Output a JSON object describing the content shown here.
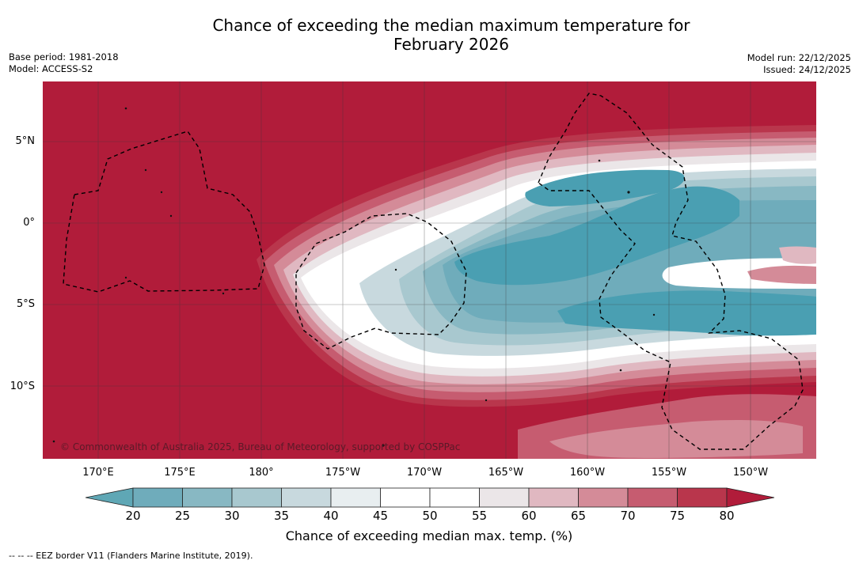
{
  "title": {
    "line1": "Chance of exceeding the median maximum temperature for",
    "line2": "February 2026"
  },
  "meta_left": {
    "base_period": "Base period: 1981-2018",
    "model": "Model: ACCESS-S2"
  },
  "meta_right": {
    "model_run": "Model run: 22/12/2025",
    "issued": "Issued: 24/12/2025"
  },
  "map": {
    "lat_labels": [
      "5°N",
      "0°",
      "5°S",
      "10°S"
    ],
    "lon_labels": [
      "170°E",
      "175°E",
      "180°",
      "175°W",
      "170°W",
      "165°W",
      "160°W",
      "155°W",
      "150°W"
    ],
    "copyright": "© Commonwealth of Australia 2025, Bureau of Meteorology, supported by COSPPac"
  },
  "colorbar": {
    "ticks": [
      "20",
      "25",
      "30",
      "35",
      "40",
      "45",
      "50",
      "55",
      "60",
      "65",
      "70",
      "75",
      "80"
    ],
    "colors": [
      "#5fa7b5",
      "#6facbb",
      "#88b8c3",
      "#a8c8cf",
      "#c8d9de",
      "#e8eef0",
      "#ffffff",
      "#ffffff",
      "#ebe6e8",
      "#e0b8c1",
      "#d48b98",
      "#c65c70",
      "#b9364c",
      "#b11c3a"
    ],
    "label": "Chance of exceeding median max. temp. (%)"
  },
  "footer": {
    "eez_note": "--  --  -- EEZ border V11 (Flanders Marine Institute, 2019)."
  }
}
